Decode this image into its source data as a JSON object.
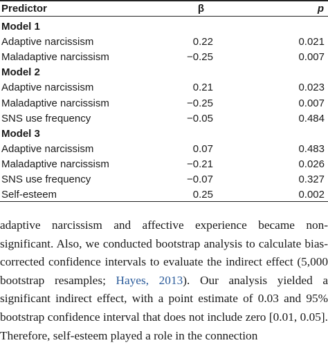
{
  "table": {
    "headers": {
      "predictor": "Predictor",
      "beta": "β",
      "p": "p"
    },
    "rows": [
      {
        "type": "group",
        "label": "Model 1"
      },
      {
        "type": "data",
        "label": "Adaptive narcissism",
        "beta": "0.22",
        "p": "0.021"
      },
      {
        "type": "data",
        "label": "Maladaptive narcissism",
        "beta": "−0.25",
        "p": "0.007"
      },
      {
        "type": "group",
        "label": "Model 2"
      },
      {
        "type": "data",
        "label": "Adaptive narcissism",
        "beta": "0.21",
        "p": "0.023"
      },
      {
        "type": "data",
        "label": "Maladaptive narcissism",
        "beta": "−0.25",
        "p": "0.007"
      },
      {
        "type": "data",
        "label": "SNS use frequency",
        "beta": "−0.05",
        "p": "0.484"
      },
      {
        "type": "group",
        "label": "Model 3"
      },
      {
        "type": "data",
        "label": "Adaptive narcissism",
        "beta": "0.07",
        "p": "0.483"
      },
      {
        "type": "data",
        "label": "Maladaptive narcissism",
        "beta": "−0.21",
        "p": "0.026"
      },
      {
        "type": "data",
        "label": "SNS use frequency",
        "beta": "−0.07",
        "p": "0.327"
      },
      {
        "type": "data",
        "label": "Self-esteem",
        "beta": "0.25",
        "p": "0.002"
      }
    ]
  },
  "text": {
    "before_cite": "adaptive narcissism and affective experience became non-significant. Also, we conducted bootstrap analysis to calculate bias-corrected confidence intervals to evaluate the indirect effect (5,000 bootstrap resamples; ",
    "cite": "Hayes, 2013",
    "after_cite": "). Our analysis yielded a significant indirect effect, with a point estimate of 0.03 and 95% bootstrap confidence interval that does not include zero [0.01, 0.05]. Therefore, self-esteem played a role in the connection"
  }
}
